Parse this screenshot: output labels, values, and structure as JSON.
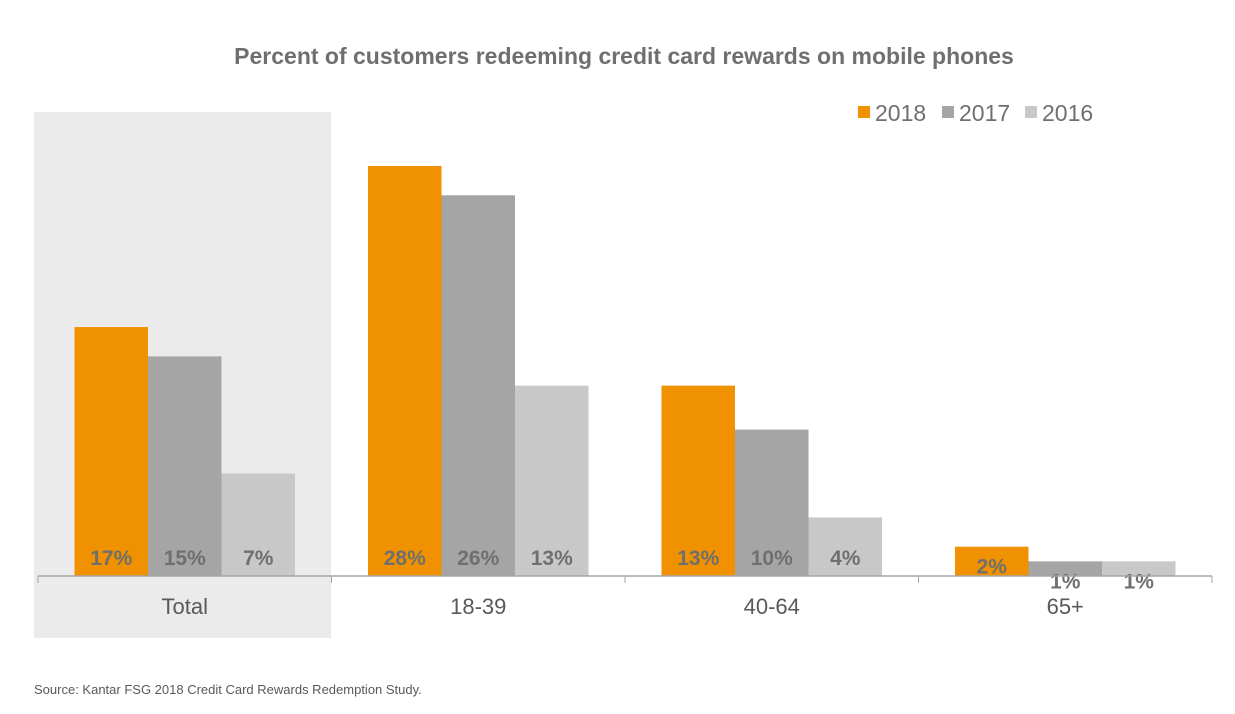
{
  "chart_data": {
    "type": "bar",
    "title": "Percent of customers redeeming credit card rewards on mobile phones",
    "categories": [
      "Total",
      "18-39",
      "40-64",
      "65+"
    ],
    "highlighted_category": "Total",
    "series": [
      {
        "name": "2018",
        "color": "#f09100",
        "values": [
          17,
          28,
          13,
          2
        ]
      },
      {
        "name": "2017",
        "color": "#a5a5a5",
        "values": [
          15,
          26,
          10,
          1
        ]
      },
      {
        "name": "2016",
        "color": "#c8c8c8",
        "values": [
          7,
          13,
          4,
          1
        ]
      }
    ],
    "data_labels": [
      [
        "17%",
        "28%",
        "13%",
        "2%"
      ],
      [
        "15%",
        "26%",
        "10%",
        "1%"
      ],
      [
        "7%",
        "13%",
        "4%",
        "1%"
      ]
    ],
    "ylim": [
      0,
      28
    ],
    "grid": false,
    "legend_position": "top-right",
    "source": "Source: Kantar FSG 2018 Credit Card Rewards Redemption Study."
  }
}
